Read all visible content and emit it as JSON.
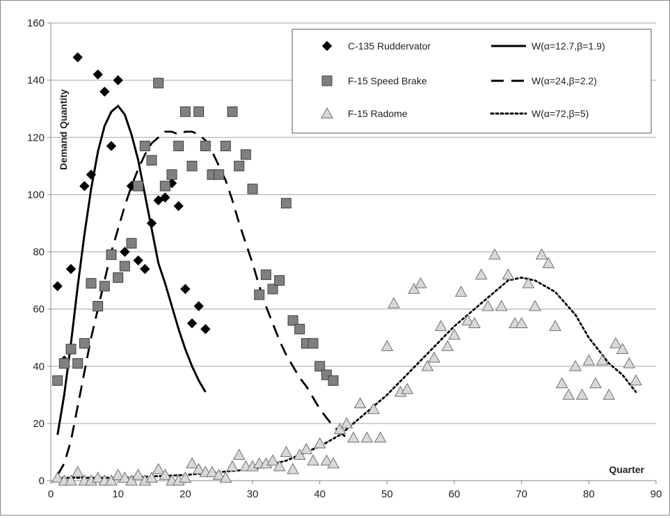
{
  "chart_data": {
    "type": "scatter",
    "title": "",
    "xlabel": "Quarter",
    "ylabel": "Demand Quantity",
    "xlim": [
      0,
      90
    ],
    "ylim": [
      0,
      160
    ],
    "xticks": [
      0,
      10,
      20,
      30,
      40,
      50,
      60,
      70,
      80,
      90
    ],
    "yticks": [
      0,
      20,
      40,
      60,
      80,
      100,
      120,
      140,
      160
    ],
    "grid": "horizontal",
    "legend_position": "top-right",
    "colors": {
      "marker_dark": "#000000",
      "marker_square_fill": "#808080",
      "marker_triangle_fill": "#d9d9d9",
      "line": "#000000",
      "grid": "#a6a6a6"
    },
    "series": [
      {
        "name": "C-135 Ruddervator",
        "kind": "points",
        "marker": "diamond",
        "points": [
          [
            1,
            68
          ],
          [
            2,
            42
          ],
          [
            3,
            74
          ],
          [
            4,
            148
          ],
          [
            5,
            103
          ],
          [
            6,
            107
          ],
          [
            7,
            142
          ],
          [
            8,
            136
          ],
          [
            9,
            117
          ],
          [
            10,
            140
          ],
          [
            11,
            80
          ],
          [
            12,
            103
          ],
          [
            13,
            77
          ],
          [
            14,
            74
          ],
          [
            15,
            90
          ],
          [
            16,
            98
          ],
          [
            17,
            99
          ],
          [
            18,
            104
          ],
          [
            19,
            96
          ],
          [
            20,
            67
          ],
          [
            21,
            55
          ],
          [
            22,
            61
          ],
          [
            23,
            53
          ]
        ]
      },
      {
        "name": "F-15 Speed Brake",
        "kind": "points",
        "marker": "square",
        "points": [
          [
            1,
            35
          ],
          [
            2,
            41
          ],
          [
            3,
            46
          ],
          [
            4,
            41
          ],
          [
            5,
            48
          ],
          [
            6,
            69
          ],
          [
            7,
            61
          ],
          [
            8,
            68
          ],
          [
            9,
            79
          ],
          [
            10,
            71
          ],
          [
            11,
            75
          ],
          [
            12,
            83
          ],
          [
            13,
            103
          ],
          [
            14,
            117
          ],
          [
            15,
            112
          ],
          [
            16,
            139
          ],
          [
            17,
            103
          ],
          [
            18,
            107
          ],
          [
            19,
            117
          ],
          [
            20,
            129
          ],
          [
            21,
            110
          ],
          [
            22,
            129
          ],
          [
            23,
            117
          ],
          [
            24,
            107
          ],
          [
            25,
            107
          ],
          [
            26,
            117
          ],
          [
            27,
            129
          ],
          [
            28,
            110
          ],
          [
            29,
            114
          ],
          [
            30,
            102
          ],
          [
            31,
            65
          ],
          [
            32,
            72
          ],
          [
            33,
            67
          ],
          [
            34,
            70
          ],
          [
            35,
            97
          ],
          [
            36,
            56
          ],
          [
            37,
            53
          ],
          [
            38,
            48
          ],
          [
            39,
            48
          ],
          [
            40,
            40
          ],
          [
            41,
            37
          ],
          [
            42,
            35
          ]
        ]
      },
      {
        "name": "F-15 Radome",
        "kind": "points",
        "marker": "triangle",
        "points": [
          [
            1,
            1
          ],
          [
            2,
            0
          ],
          [
            3,
            0
          ],
          [
            4,
            3
          ],
          [
            5,
            0
          ],
          [
            6,
            0
          ],
          [
            7,
            1
          ],
          [
            8,
            0
          ],
          [
            9,
            0
          ],
          [
            10,
            2
          ],
          [
            11,
            1
          ],
          [
            12,
            0
          ],
          [
            13,
            2
          ],
          [
            14,
            0
          ],
          [
            15,
            1
          ],
          [
            16,
            4
          ],
          [
            17,
            2
          ],
          [
            18,
            0
          ],
          [
            19,
            0
          ],
          [
            20,
            1
          ],
          [
            21,
            6
          ],
          [
            22,
            4
          ],
          [
            23,
            3
          ],
          [
            24,
            3
          ],
          [
            25,
            2
          ],
          [
            26,
            1
          ],
          [
            27,
            5
          ],
          [
            28,
            9
          ],
          [
            29,
            5
          ],
          [
            30,
            5
          ],
          [
            31,
            6
          ],
          [
            32,
            6
          ],
          [
            33,
            7
          ],
          [
            34,
            5
          ],
          [
            35,
            10
          ],
          [
            36,
            4
          ],
          [
            37,
            9
          ],
          [
            38,
            11
          ],
          [
            39,
            7
          ],
          [
            40,
            13
          ],
          [
            41,
            7
          ],
          [
            42,
            6
          ],
          [
            43,
            18
          ],
          [
            44,
            20
          ],
          [
            45,
            15
          ],
          [
            46,
            27
          ],
          [
            47,
            15
          ],
          [
            48,
            25
          ],
          [
            49,
            15
          ],
          [
            50,
            47
          ],
          [
            51,
            62
          ],
          [
            52,
            31
          ],
          [
            53,
            32
          ],
          [
            54,
            67
          ],
          [
            55,
            69
          ],
          [
            56,
            40
          ],
          [
            57,
            43
          ],
          [
            58,
            54
          ],
          [
            59,
            47
          ],
          [
            60,
            51
          ],
          [
            61,
            66
          ],
          [
            62,
            56
          ],
          [
            63,
            55
          ],
          [
            64,
            72
          ],
          [
            65,
            61
          ],
          [
            66,
            79
          ],
          [
            67,
            61
          ],
          [
            68,
            72
          ],
          [
            69,
            55
          ],
          [
            70,
            55
          ],
          [
            71,
            69
          ],
          [
            72,
            61
          ],
          [
            73,
            79
          ],
          [
            74,
            76
          ],
          [
            75,
            54
          ],
          [
            76,
            34
          ],
          [
            77,
            30
          ],
          [
            78,
            40
          ],
          [
            79,
            30
          ],
          [
            80,
            42
          ],
          [
            81,
            34
          ],
          [
            82,
            42
          ],
          [
            83,
            30
          ],
          [
            84,
            48
          ],
          [
            85,
            46
          ],
          [
            86,
            41
          ],
          [
            87,
            35
          ]
        ]
      },
      {
        "name": "W(α=12.7,β=1.9)",
        "kind": "curve",
        "line_style": "solid",
        "points": [
          [
            1,
            16
          ],
          [
            2,
            30
          ],
          [
            3,
            48
          ],
          [
            4,
            68
          ],
          [
            5,
            86
          ],
          [
            6,
            102
          ],
          [
            7,
            115
          ],
          [
            8,
            124
          ],
          [
            9,
            129
          ],
          [
            10,
            131
          ],
          [
            11,
            128
          ],
          [
            12,
            121
          ],
          [
            13,
            112
          ],
          [
            14,
            100
          ],
          [
            15,
            88
          ],
          [
            16,
            76
          ],
          [
            17,
            69
          ],
          [
            18,
            61
          ],
          [
            19,
            53
          ],
          [
            20,
            46
          ],
          [
            21,
            40
          ],
          [
            22,
            35
          ],
          [
            23,
            31
          ]
        ]
      },
      {
        "name": "W(α=24,β=2.2)",
        "kind": "curve",
        "line_style": "dashed",
        "points": [
          [
            1,
            2
          ],
          [
            2,
            6
          ],
          [
            3,
            14
          ],
          [
            4,
            26
          ],
          [
            5,
            38
          ],
          [
            6,
            50
          ],
          [
            7,
            60
          ],
          [
            8,
            70
          ],
          [
            9,
            80
          ],
          [
            10,
            88
          ],
          [
            11,
            96
          ],
          [
            12,
            103
          ],
          [
            13,
            109
          ],
          [
            14,
            114
          ],
          [
            15,
            118
          ],
          [
            16,
            120
          ],
          [
            17,
            122
          ],
          [
            18,
            122
          ],
          [
            19,
            121
          ],
          [
            20,
            122
          ],
          [
            21,
            122
          ],
          [
            22,
            121
          ],
          [
            23,
            119
          ],
          [
            24,
            115
          ],
          [
            25,
            110
          ],
          [
            26,
            105
          ],
          [
            27,
            98
          ],
          [
            28,
            90
          ],
          [
            29,
            83
          ],
          [
            30,
            76
          ],
          [
            31,
            68
          ],
          [
            32,
            61
          ],
          [
            33,
            55
          ],
          [
            34,
            49
          ],
          [
            35,
            44
          ],
          [
            36,
            40
          ],
          [
            37,
            36
          ],
          [
            38,
            33
          ],
          [
            39,
            29
          ],
          [
            40,
            25
          ],
          [
            41,
            22
          ],
          [
            42,
            19
          ],
          [
            43,
            17
          ],
          [
            44,
            15
          ]
        ]
      },
      {
        "name": "W(α=72,β=5)",
        "kind": "curve",
        "line_style": "dotted",
        "points": [
          [
            1,
            1
          ],
          [
            10,
            1
          ],
          [
            20,
            2
          ],
          [
            25,
            3
          ],
          [
            30,
            4
          ],
          [
            35,
            7
          ],
          [
            40,
            12
          ],
          [
            43,
            16
          ],
          [
            45,
            20
          ],
          [
            50,
            30
          ],
          [
            55,
            42
          ],
          [
            60,
            54
          ],
          [
            65,
            64
          ],
          [
            68,
            70
          ],
          [
            70,
            71
          ],
          [
            72,
            70
          ],
          [
            75,
            66
          ],
          [
            78,
            58
          ],
          [
            80,
            50
          ],
          [
            83,
            41
          ],
          [
            85,
            37
          ],
          [
            87,
            31
          ]
        ]
      }
    ]
  }
}
